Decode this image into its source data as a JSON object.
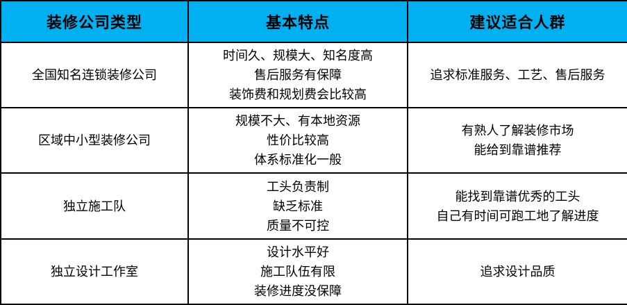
{
  "colors": {
    "header_background": "#00b0f0",
    "border": "#000000",
    "text": "#000000"
  },
  "table": {
    "headers": [
      "装修公司类型",
      "基本特点",
      "建议适合人群"
    ],
    "rows": [
      {
        "type": "全国知名连锁装修公司",
        "features": "时间久、规模大、知名度高\n售后服务有保障\n装饰费和规划费会比较高",
        "audience": "追求标准服务、工艺、售后服务"
      },
      {
        "type": "区域中小型装修公司",
        "features": "规模不大、有本地资源\n性价比较高\n体系标准化一般",
        "audience": "有熟人了解装修市场\n能给到靠谱推荐"
      },
      {
        "type": "独立施工队",
        "features": "工头负责制\n缺乏标准\n质量不可控",
        "audience": "能找到靠谱优秀的工头\n自己有时间可跑工地了解进度"
      },
      {
        "type": "独立设计工作室",
        "features": "设计水平好\n施工队伍有限\n装修进度没保障",
        "audience": "追求设计品质"
      }
    ]
  }
}
